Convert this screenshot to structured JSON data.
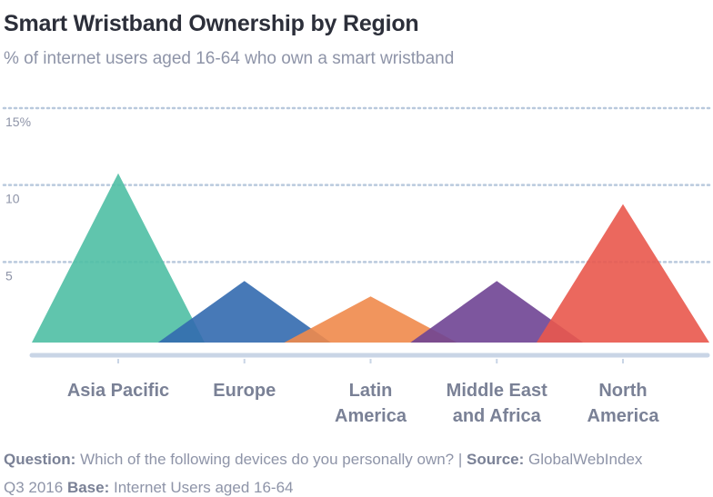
{
  "chart_data": {
    "type": "area",
    "title": "Smart Wristband Ownership by Region",
    "subtitle": "% of internet users aged 16-64 who own a smart wristband",
    "ylim": [
      0,
      15
    ],
    "yticks": [
      {
        "value": 15,
        "label": "15%"
      },
      {
        "value": 10,
        "label": "10"
      },
      {
        "value": 5,
        "label": "5"
      }
    ],
    "grid": true,
    "categories": [
      [
        "Asia Pacific"
      ],
      [
        "Europe"
      ],
      [
        "Latin",
        "America"
      ],
      [
        "Middle East",
        "and Africa"
      ],
      [
        "North",
        "America"
      ]
    ],
    "values": [
      11,
      4,
      3,
      4,
      9
    ],
    "colors": [
      "#4fbfa4",
      "#336aaf",
      "#f08a4b",
      "#6f4494",
      "#e9584c"
    ]
  },
  "footer": {
    "line1": [
      {
        "label": "Question:",
        "text": " Which of the following devices do you personally own? | "
      },
      {
        "label": "Source:",
        "text": " GlobalWebIndex"
      }
    ],
    "line2": [
      {
        "label": "",
        "text": "Q3 2016  "
      },
      {
        "label": "Base:",
        "text": " Internet Users aged 16-64"
      }
    ]
  }
}
